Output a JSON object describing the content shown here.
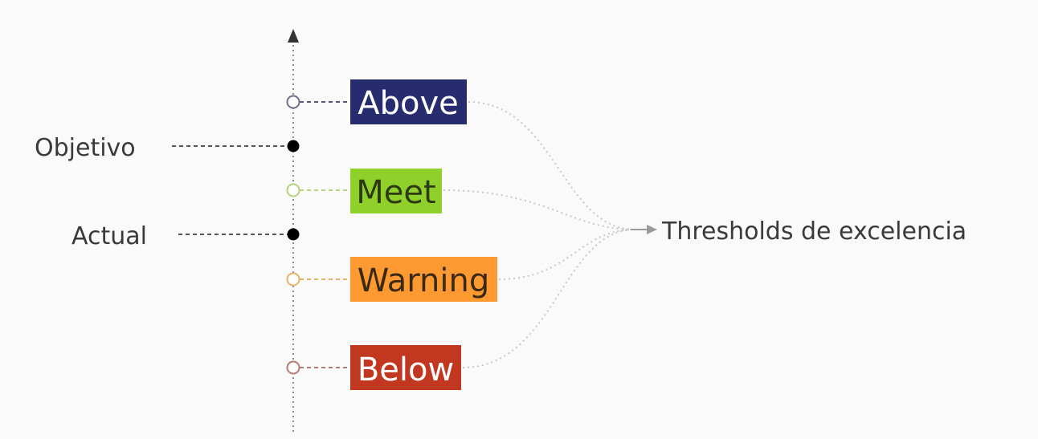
{
  "markers": [
    {
      "label": "Objetivo"
    },
    {
      "label": "Actual"
    }
  ],
  "thresholds": [
    {
      "label": "Above",
      "bg": "#262c6e",
      "text_color": "#ffffff",
      "ring_color": "#6f6f8c"
    },
    {
      "label": "Meet",
      "bg": "#8fd12a",
      "text_color": "#2d3a14",
      "ring_color": "#b3d47a"
    },
    {
      "label": "Warning",
      "bg": "#ff9a33",
      "text_color": "#3a2a14",
      "ring_color": "#e8b26a"
    },
    {
      "label": "Below",
      "bg": "#c2371f",
      "text_color": "#ffffff",
      "ring_color": "#b77a73"
    }
  ],
  "target": {
    "label": "Thresholds de excelencia"
  },
  "colors": {
    "axis": "#8a8a8a",
    "marker_dot": "#000000",
    "connector": "#c8c8c8",
    "arrow": "#9a9a9a"
  }
}
